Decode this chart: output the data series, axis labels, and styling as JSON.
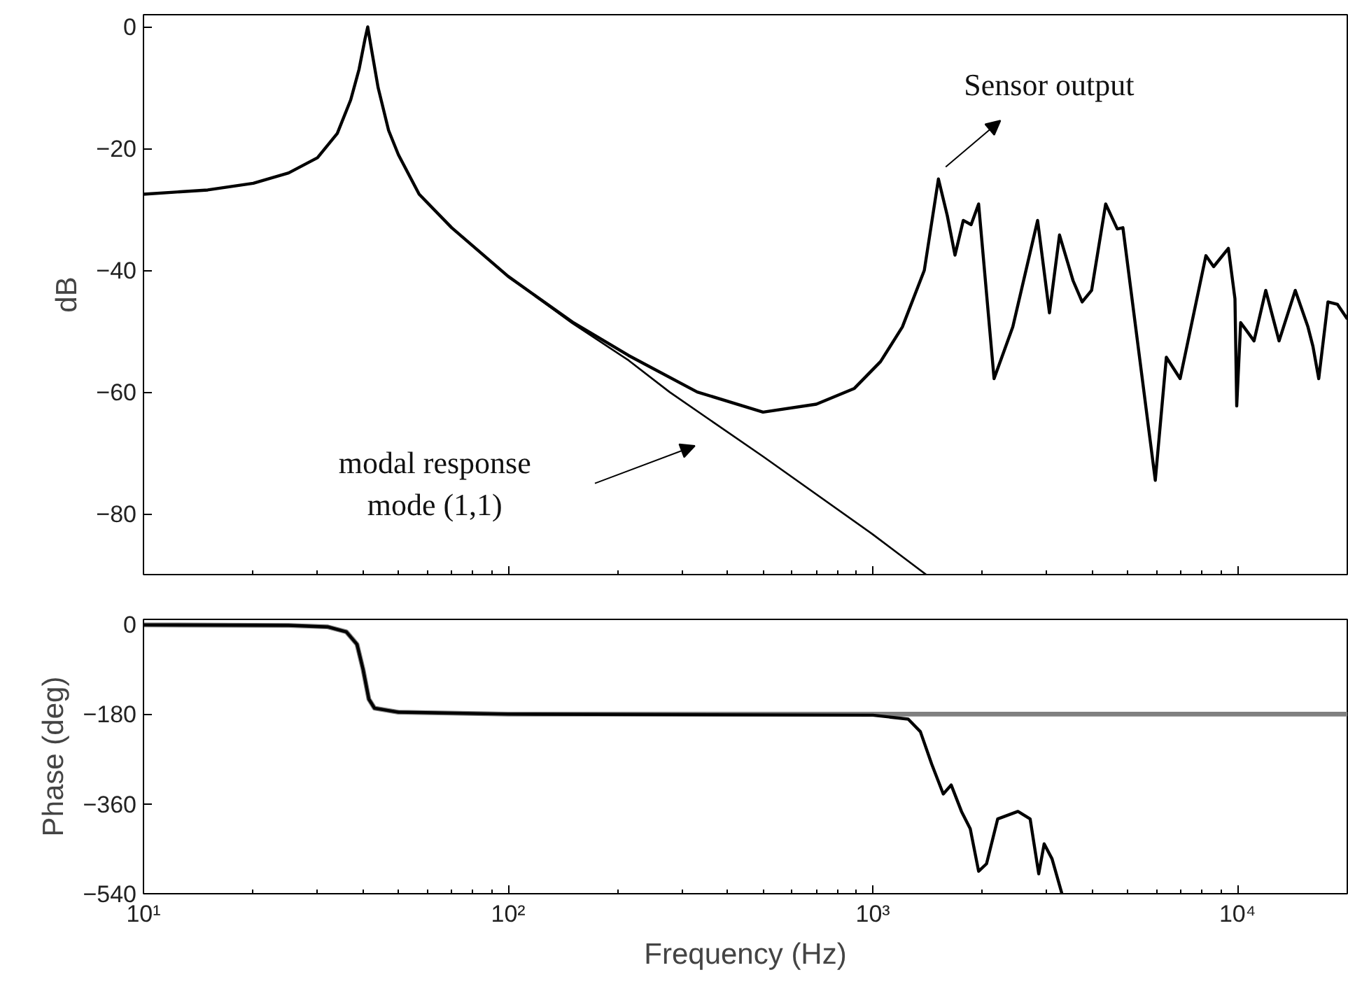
{
  "chart_data": [
    {
      "type": "line",
      "ylabel": "dB",
      "log": "x",
      "grid": false,
      "tick_labels": "y",
      "xlim": [
        10,
        20000
      ],
      "ylim": [
        -90,
        2
      ],
      "xticks": [
        {
          "value": 10,
          "label": null
        },
        {
          "value": 100,
          "label": null
        },
        {
          "value": 1000,
          "label": null
        },
        {
          "value": 10000,
          "label": null
        }
      ],
      "yticks": [
        0,
        -20,
        -40,
        -60,
        -80
      ],
      "series": [
        {
          "color": "#000000",
          "x": [
            10,
            15,
            20,
            25,
            30,
            34,
            37,
            39,
            40.5,
            41.2,
            42,
            44,
            47,
            50,
            57,
            70,
            100,
            150,
            214,
            277,
            500,
            1000,
            1400
          ],
          "values": [
            -27.5,
            -26.8,
            -25.7,
            -24,
            -21.5,
            -17.5,
            -12,
            -7,
            -2,
            0,
            -3,
            -10,
            -17,
            -21,
            -27.5,
            -33,
            -41,
            -48.7,
            -54.8,
            -60,
            -70.6,
            -83.4,
            -90
          ]
        },
        {
          "color": "#000000",
          "x": [
            10,
            15,
            20,
            25,
            30,
            34,
            37,
            39,
            40.5,
            41.2,
            42,
            44,
            47,
            50,
            57,
            70,
            100,
            150,
            214,
            330,
            500,
            700,
            890,
            1050,
            1205,
            1384,
            1513,
            1600,
            1680,
            1770,
            1860,
            1950,
            2150,
            2420,
            2830,
            3050,
            3250,
            3540,
            3750,
            3980,
            4350,
            4680,
            4850,
            5950,
            6380,
            6960,
            8190,
            8600,
            9440,
            9840,
            9950,
            10200,
            11100,
            11950,
            13000,
            14400,
            15600,
            16100,
            16700,
            17700,
            18800,
            20000
          ],
          "values": [
            -27.5,
            -26.8,
            -25.7,
            -24,
            -21.5,
            -17.5,
            -12,
            -7,
            -2,
            0,
            -3,
            -10,
            -17,
            -21,
            -27.5,
            -33,
            -41,
            -48.5,
            -54,
            -60,
            -63.3,
            -62,
            -59.4,
            -55,
            -49.3,
            -40,
            -25,
            -31,
            -37.5,
            -31.8,
            -32.5,
            -29.1,
            -57.8,
            -49.3,
            -31.8,
            -47,
            -34.2,
            -41.7,
            -45.2,
            -43.3,
            -29.1,
            -33.2,
            -33,
            -74.5,
            -54.3,
            -57.8,
            -37.6,
            -39.4,
            -36.4,
            -44.7,
            -62.3,
            -48.6,
            -51.6,
            -43.3,
            -51.6,
            -43.3,
            -49.3,
            -52.5,
            -57.8,
            -45.2,
            -45.6,
            -48
          ]
        }
      ],
      "annotations": [
        {
          "text": "Sensor output",
          "x": 1513,
          "y": -25
        },
        "modal response\nmode (1,1)"
      ]
    },
    {
      "type": "line",
      "xlabel": "Frequency (Hz)",
      "ylabel": "Phase (deg)",
      "log": "x",
      "grid": false,
      "xlim": [
        10,
        20000
      ],
      "ylim": [
        -540,
        10
      ],
      "xticks": [
        {
          "value": 10,
          "label": "10¹"
        },
        {
          "value": 100,
          "label": "10²"
        },
        {
          "value": 1000,
          "label": "10³"
        },
        {
          "value": 10000,
          "label": "10⁴"
        }
      ],
      "yticks": [
        0,
        -180,
        -360,
        -540
      ],
      "series": [
        {
          "color": "#808080",
          "x": [
            10,
            25,
            32,
            36,
            38.5,
            40,
            41.5,
            43,
            50,
            100,
            20000
          ],
          "values": [
            -1,
            -2,
            -5,
            -15,
            -40,
            -90,
            -150,
            -168,
            -176,
            -180,
            -180
          ]
        },
        {
          "color": "#000000",
          "x": [
            10,
            25,
            32,
            36,
            38.5,
            40,
            41.5,
            43,
            50,
            100,
            1000,
            1250,
            1350,
            1450,
            1560,
            1640,
            1750,
            1850,
            1950,
            2050,
            2200,
            2500,
            2700,
            2850,
            2950,
            3100,
            3300
          ],
          "values": [
            -1,
            -2,
            -5,
            -15,
            -40,
            -90,
            -150,
            -168,
            -176,
            -180,
            -182,
            -190,
            -215,
            -280,
            -340,
            -322,
            -375,
            -410,
            -495,
            -480,
            -390,
            -375,
            -390,
            -500,
            -440,
            -470,
            -540
          ]
        }
      ]
    }
  ]
}
